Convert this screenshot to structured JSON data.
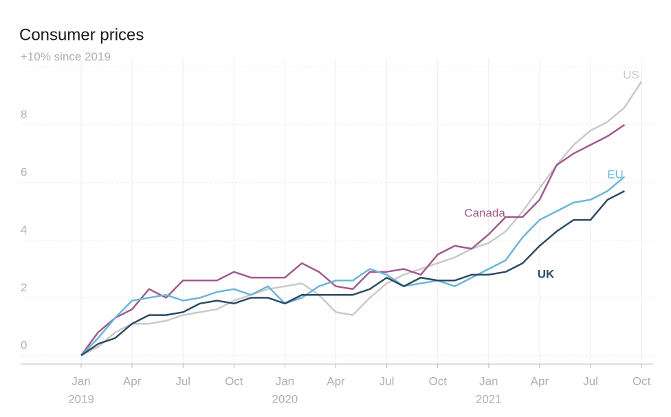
{
  "chart_data": {
    "type": "line",
    "title": "Consumer prices",
    "categories": [
      "Jan",
      null,
      null,
      "Apr",
      null,
      null,
      "Jul",
      null,
      null,
      "Oct",
      null,
      null,
      "Jan",
      null,
      null,
      "Apr",
      null,
      null,
      "Jul",
      null,
      null,
      "Oct",
      null,
      null,
      "Jan",
      null,
      null,
      "Apr",
      null,
      null,
      "Jul",
      null,
      null,
      "Oct"
    ],
    "year_labels": [
      "2019",
      null,
      null,
      null,
      null,
      null,
      null,
      null,
      null,
      null,
      null,
      null,
      "2020",
      null,
      null,
      null,
      null,
      null,
      null,
      null,
      null,
      null,
      null,
      null,
      "2021",
      null,
      null,
      null,
      null,
      null,
      null,
      null,
      null,
      null
    ],
    "ylim": [
      -0.3,
      10.3
    ],
    "yticks": [
      0,
      2,
      4,
      6,
      8,
      {
        "value": 10,
        "label": "+10% since 2019"
      }
    ],
    "grid": true,
    "series": [
      {
        "name": "US",
        "color": "#c9c9c9",
        "values": [
          0,
          0.3,
          0.8,
          1.1,
          1.1,
          1.2,
          1.4,
          1.5,
          1.6,
          1.9,
          2.1,
          2.3,
          2.4,
          2.5,
          2.1,
          1.5,
          1.4,
          2.0,
          2.5,
          2.8,
          3.0,
          3.2,
          3.4,
          3.7,
          3.9,
          4.3,
          5.0,
          5.8,
          6.6,
          7.3,
          7.8,
          8.1,
          8.6,
          9.5
        ]
      },
      {
        "name": "Canada",
        "color": "#a05a8c",
        "values": [
          0,
          0.8,
          1.3,
          1.6,
          2.3,
          2.0,
          2.6,
          2.6,
          2.6,
          2.9,
          2.7,
          2.7,
          2.7,
          3.2,
          2.9,
          2.4,
          2.3,
          2.9,
          2.9,
          3.0,
          2.8,
          3.5,
          3.8,
          3.7,
          4.2,
          4.8,
          4.8,
          5.4,
          6.6,
          7.0,
          7.3,
          7.6,
          8.0,
          null
        ]
      },
      {
        "name": "EU",
        "color": "#6bb5d8",
        "values": [
          0,
          0.6,
          1.3,
          1.9,
          2.0,
          2.1,
          1.9,
          2.0,
          2.2,
          2.3,
          2.1,
          2.4,
          1.8,
          2.0,
          2.4,
          2.6,
          2.6,
          3.0,
          2.8,
          2.4,
          2.5,
          2.6,
          2.4,
          2.7,
          3.0,
          3.3,
          4.1,
          4.7,
          5.0,
          5.3,
          5.4,
          5.7,
          6.2,
          null
        ]
      },
      {
        "name": "UK",
        "color": "#2c4a63",
        "values": [
          0,
          0.4,
          0.6,
          1.1,
          1.4,
          1.4,
          1.5,
          1.8,
          1.9,
          1.8,
          2.0,
          2.0,
          1.8,
          2.1,
          2.1,
          2.1,
          2.1,
          2.3,
          2.7,
          2.4,
          2.7,
          2.6,
          2.6,
          2.8,
          2.8,
          2.9,
          3.2,
          3.8,
          4.3,
          4.7,
          4.7,
          5.4,
          5.7,
          null
        ]
      }
    ]
  }
}
